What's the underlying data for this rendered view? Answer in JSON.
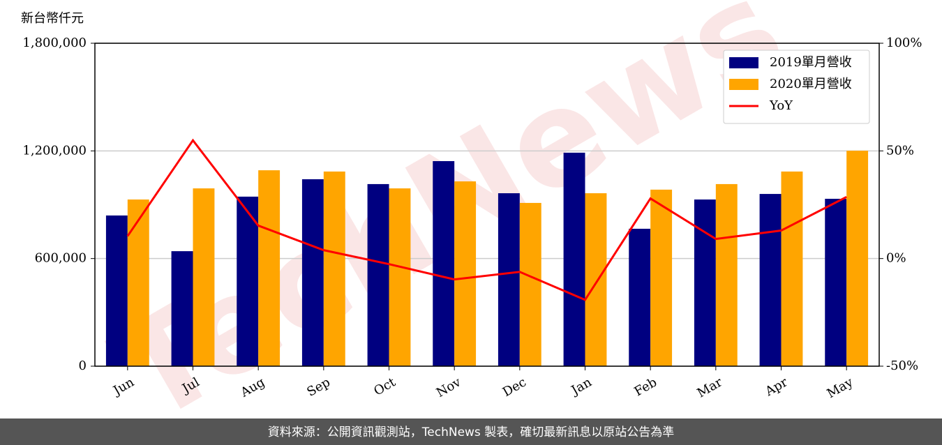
{
  "chart_data": {
    "type": "bar",
    "unit_label": "新台幣仟元",
    "watermark": "TechNews",
    "source": "資料來源：公開資訊觀測站，TechNews 製表，確切最新訊息以原站公告為準",
    "categories": [
      "Jun",
      "Jul",
      "Aug",
      "Sep",
      "Oct",
      "Nov",
      "Dec",
      "Jan",
      "Feb",
      "Mar",
      "Apr",
      "May"
    ],
    "series": [
      {
        "name": "2019單月營收",
        "color": "#000080",
        "type": "bar",
        "values": [
          840000,
          641000,
          945000,
          1042000,
          1015000,
          1143000,
          964000,
          1190000,
          766000,
          929000,
          960000,
          933000
        ]
      },
      {
        "name": "2020單月營收",
        "color": "#ffa500",
        "type": "bar",
        "values": [
          929000,
          991000,
          1092000,
          1085000,
          991000,
          1030000,
          910000,
          964000,
          984000,
          1015000,
          1085000,
          1201000
        ]
      },
      {
        "name": "YoY",
        "color": "#ff0000",
        "type": "line",
        "axis": "y2",
        "values": [
          10.4,
          54.9,
          15.3,
          3.9,
          -2.6,
          -9.7,
          -6.2,
          -19.2,
          27.9,
          9.1,
          13.0,
          28.6
        ]
      }
    ],
    "ylim": [
      0,
      1800000
    ],
    "yticks": [
      0,
      {
        "value": 600000,
        "label": "600,000"
      },
      {
        "value": 1200000,
        "label": "1,200,000"
      },
      {
        "value": 1800000,
        "label": "1,800,000"
      }
    ],
    "y2lim": [
      -50,
      100
    ],
    "y2ticks": [
      {
        "value": -50,
        "label": "-50%"
      },
      {
        "value": 0,
        "label": "0%"
      },
      {
        "value": 50,
        "label": "50%"
      },
      {
        "value": 100,
        "label": "100%"
      }
    ],
    "grid": true,
    "legend": "upper right"
  }
}
